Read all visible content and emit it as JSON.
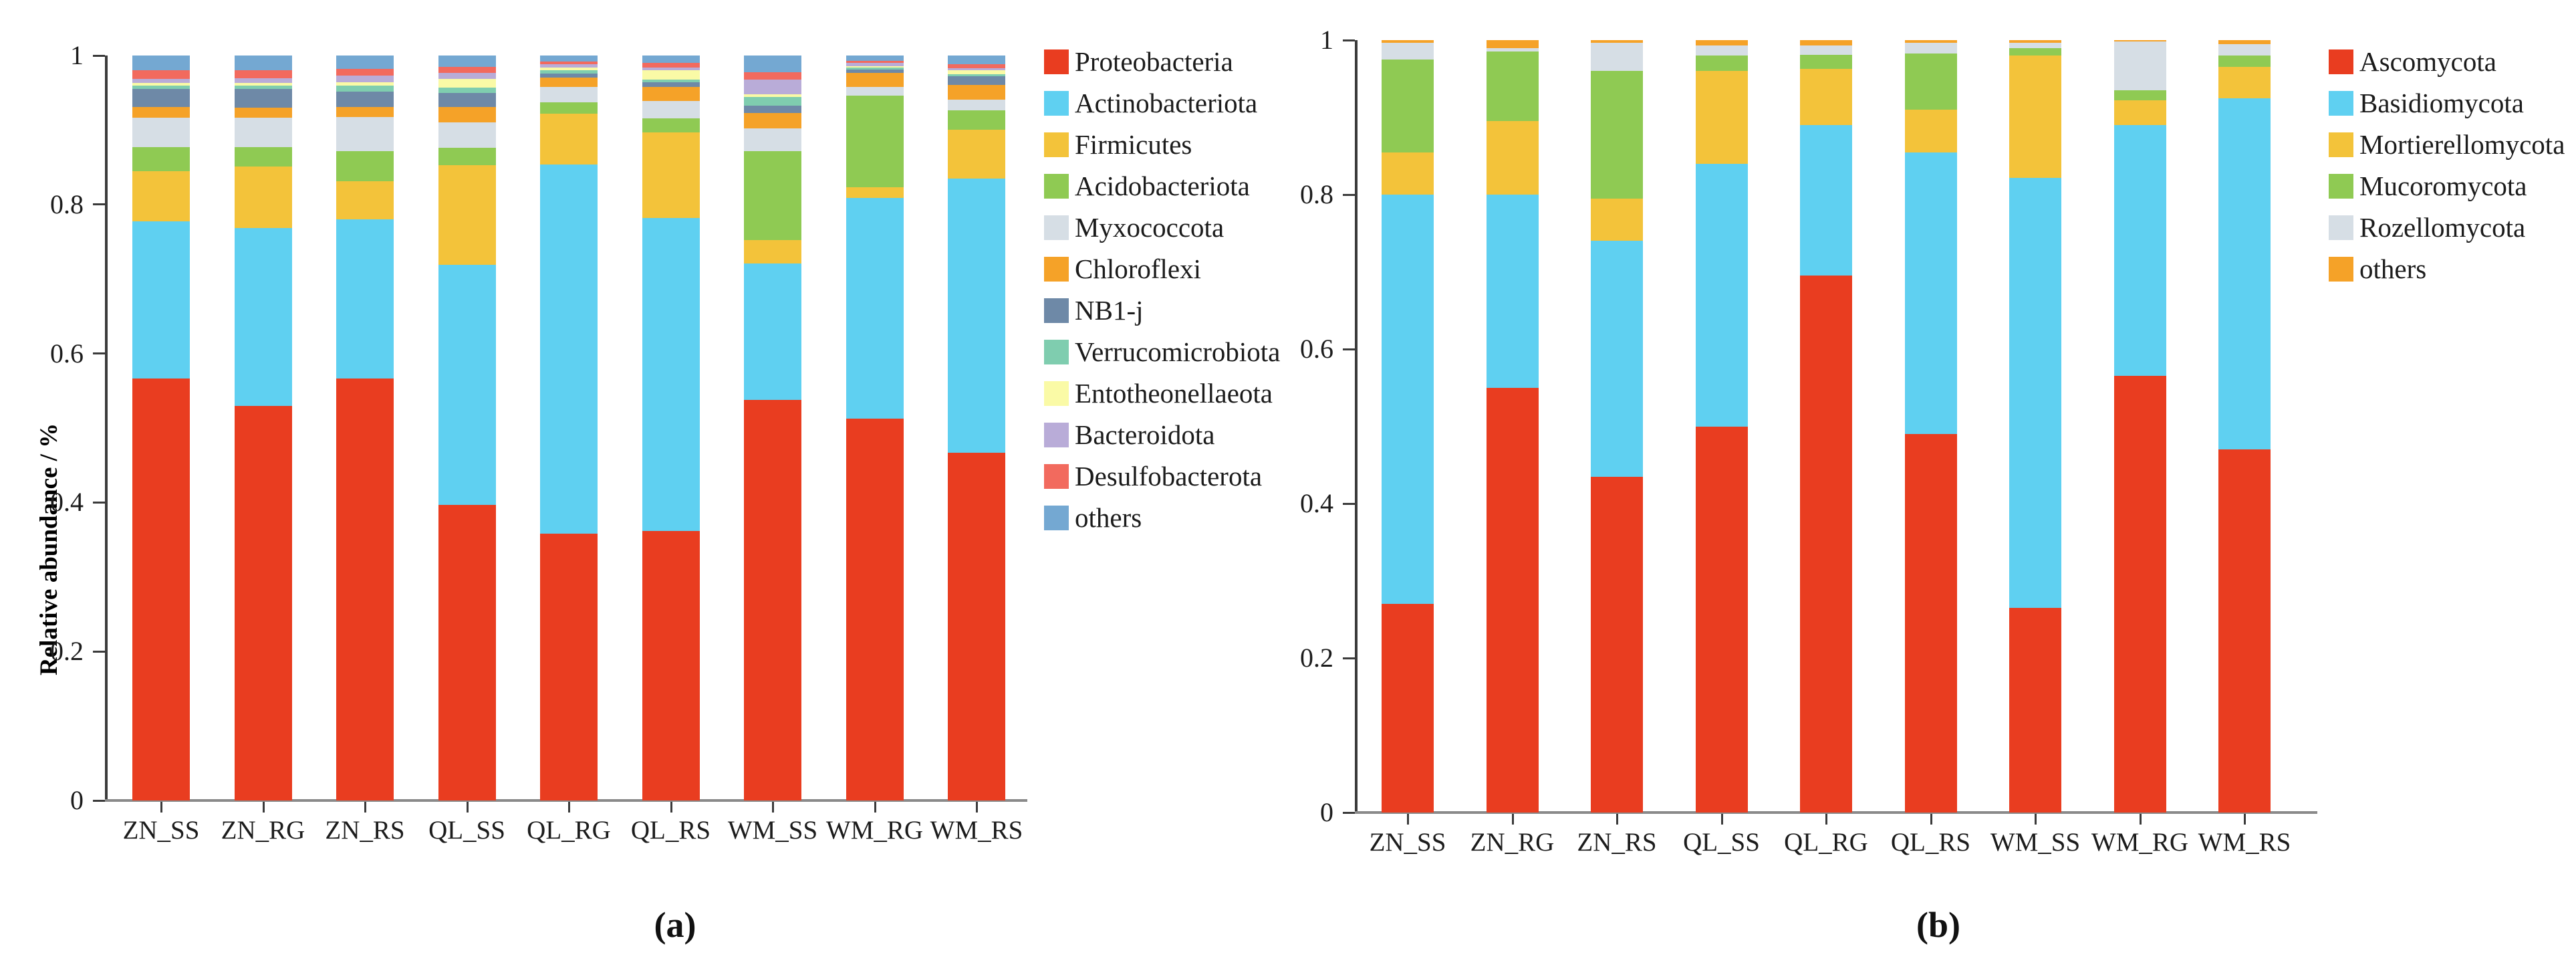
{
  "figure": {
    "caption_a": "(a)",
    "caption_b": "(b)",
    "ylabel": "Relative abundance / %"
  },
  "chart_data": [
    {
      "type": "bar",
      "stacked": true,
      "panel": "a",
      "ylabel": "Relative abundance / %",
      "ylim": [
        0,
        1
      ],
      "yticks": [
        0,
        0.2,
        0.4,
        0.6,
        0.8,
        1
      ],
      "ytick_labels": [
        "0",
        "0.2",
        "0.4",
        "0.6",
        "0.8",
        "1"
      ],
      "grid": false,
      "legend_position": "right",
      "categories": [
        "ZN_SS",
        "ZN_RG",
        "ZN_RS",
        "QL_SS",
        "QL_RG",
        "QL_RS",
        "WM_SS",
        "WM_RG",
        "WM_RS"
      ],
      "series": [
        {
          "name": "Proteobacteria",
          "color": "#E93D20",
          "values": [
            0.566,
            0.53,
            0.566,
            0.397,
            0.358,
            0.362,
            0.538,
            0.513,
            0.467
          ]
        },
        {
          "name": "Actinobacteriota",
          "color": "#5FD0F1",
          "values": [
            0.211,
            0.238,
            0.214,
            0.322,
            0.496,
            0.42,
            0.183,
            0.296,
            0.368
          ]
        },
        {
          "name": "Firmicutes",
          "color": "#F3C33A",
          "values": [
            0.068,
            0.083,
            0.051,
            0.134,
            0.068,
            0.115,
            0.031,
            0.014,
            0.065
          ]
        },
        {
          "name": "Acidobacteriota",
          "color": "#8FCA53",
          "values": [
            0.032,
            0.026,
            0.041,
            0.023,
            0.015,
            0.019,
            0.12,
            0.123,
            0.026
          ]
        },
        {
          "name": "Myxococcota",
          "color": "#D6DEE5",
          "values": [
            0.04,
            0.04,
            0.045,
            0.034,
            0.021,
            0.023,
            0.03,
            0.012,
            0.015
          ]
        },
        {
          "name": "Chloroflexi",
          "color": "#F5A228",
          "values": [
            0.014,
            0.013,
            0.014,
            0.021,
            0.012,
            0.019,
            0.021,
            0.019,
            0.02
          ]
        },
        {
          "name": "NB1-j",
          "color": "#6E89A7",
          "values": [
            0.024,
            0.025,
            0.021,
            0.019,
            0.006,
            0.006,
            0.01,
            0.004,
            0.011
          ]
        },
        {
          "name": "Verrucomicrobiota",
          "color": "#7FCDAF",
          "values": [
            0.005,
            0.005,
            0.008,
            0.007,
            0.004,
            0.004,
            0.011,
            0.003,
            0.003
          ]
        },
        {
          "name": "Entotheonellaeota",
          "color": "#FAFAA6",
          "values": [
            0.003,
            0.003,
            0.004,
            0.012,
            0.004,
            0.012,
            0.004,
            0.002,
            0.005
          ]
        },
        {
          "name": "Bacteroidota",
          "color": "#B9ACD8",
          "values": [
            0.006,
            0.007,
            0.009,
            0.008,
            0.004,
            0.004,
            0.02,
            0.004,
            0.003
          ]
        },
        {
          "name": "Desulfobacterota",
          "color": "#F26A5E",
          "values": [
            0.011,
            0.01,
            0.009,
            0.008,
            0.004,
            0.006,
            0.01,
            0.003,
            0.005
          ]
        },
        {
          "name": "others",
          "color": "#74A8D2",
          "values": [
            0.02,
            0.02,
            0.018,
            0.015,
            0.008,
            0.01,
            0.022,
            0.007,
            0.012
          ]
        }
      ]
    },
    {
      "type": "bar",
      "stacked": true,
      "panel": "b",
      "ylabel": "",
      "ylim": [
        0,
        1
      ],
      "yticks": [
        0,
        0.2,
        0.4,
        0.6,
        0.8,
        1
      ],
      "ytick_labels": [
        "0",
        "0.2",
        "0.4",
        "0.6",
        "0.8",
        "1"
      ],
      "grid": false,
      "legend_position": "right",
      "categories": [
        "ZN_SS",
        "ZN_RG",
        "ZN_RS",
        "QL_SS",
        "QL_RG",
        "QL_RS",
        "WM_SS",
        "WM_RG",
        "WM_RS"
      ],
      "series": [
        {
          "name": "Ascomycota",
          "color": "#E93D20",
          "values": [
            0.27,
            0.55,
            0.435,
            0.5,
            0.695,
            0.49,
            0.265,
            0.565,
            0.47
          ]
        },
        {
          "name": "Basidiomycota",
          "color": "#5FD0F1",
          "values": [
            0.53,
            0.25,
            0.305,
            0.34,
            0.195,
            0.365,
            0.557,
            0.325,
            0.455
          ]
        },
        {
          "name": "Mortierellomycota",
          "color": "#F3C33A",
          "values": [
            0.055,
            0.095,
            0.055,
            0.12,
            0.073,
            0.055,
            0.158,
            0.032,
            0.04
          ]
        },
        {
          "name": "Mucoromycota",
          "color": "#8FCA53",
          "values": [
            0.12,
            0.09,
            0.165,
            0.02,
            0.018,
            0.073,
            0.01,
            0.013,
            0.015
          ]
        },
        {
          "name": "Rozellomycota",
          "color": "#D6DEE5",
          "values": [
            0.022,
            0.005,
            0.037,
            0.013,
            0.012,
            0.014,
            0.007,
            0.063,
            0.015
          ]
        },
        {
          "name": "others",
          "color": "#F5A228",
          "values": [
            0.003,
            0.01,
            0.003,
            0.007,
            0.007,
            0.003,
            0.003,
            0.002,
            0.005
          ]
        }
      ]
    }
  ]
}
